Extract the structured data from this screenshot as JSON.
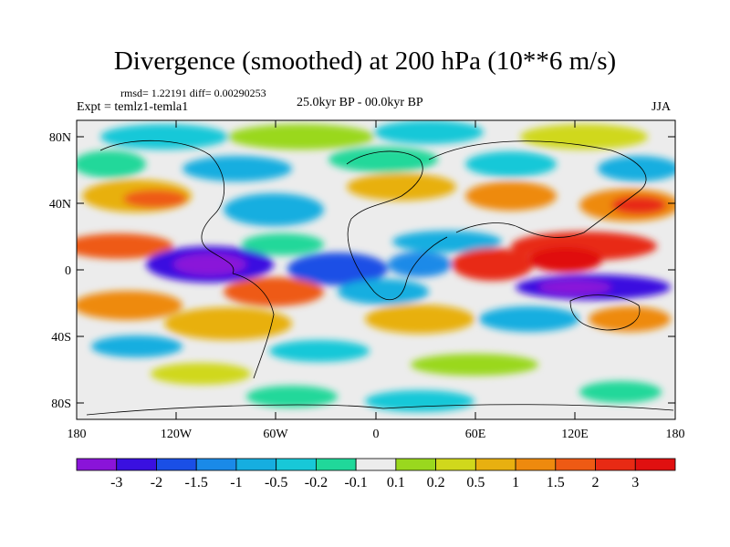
{
  "title": "Divergence (smoothed) at 200 hPa (10**6 m/s)",
  "stats_line": "rmsd= 1.22191  diff= 0.00290253",
  "experiment": "Expt = temlz1-temla1",
  "period": "25.0kyr BP - 00.0kyr BP",
  "season": "JJA",
  "lat_ticks": [
    "80N",
    "40N",
    "0",
    "40S",
    "80S"
  ],
  "lon_ticks": [
    "180",
    "120W",
    "60W",
    "0",
    "60E",
    "120E",
    "180"
  ],
  "colorbar": {
    "labels": [
      "-3",
      "-2",
      "-1.5",
      "-1",
      "-0.5",
      "-0.2",
      "-0.1",
      "0.1",
      "0.2",
      "0.5",
      "1",
      "1.5",
      "2",
      "3"
    ],
    "colors": [
      "#8a14d9",
      "#3a10e0",
      "#1a4fe6",
      "#1a8ae8",
      "#16aee0",
      "#18c8d8",
      "#20d89a",
      "#ececec",
      "#9ad81e",
      "#d0d81c",
      "#e8b010",
      "#ee8a0e",
      "#ee5a14",
      "#e82a14",
      "#e01010"
    ]
  },
  "palette": {
    "neutral": "#ececec",
    "coast": "#000000"
  }
}
